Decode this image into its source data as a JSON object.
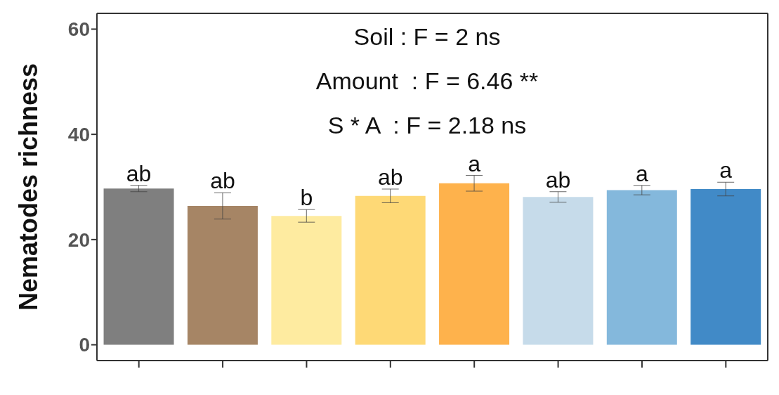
{
  "chart_data": {
    "type": "bar",
    "ylabel": "Nematodes richness",
    "categories": [
      null,
      null,
      null,
      null,
      null,
      null,
      null,
      null
    ],
    "values": [
      29.7,
      26.4,
      24.5,
      28.3,
      30.7,
      28.1,
      29.4,
      29.6
    ],
    "errors": [
      0.6,
      2.5,
      1.2,
      1.3,
      1.5,
      1.0,
      0.9,
      1.3
    ],
    "colors": [
      "#7f7f7f",
      "#a68565",
      "#feeba0",
      "#fed976",
      "#feb24c",
      "#c6dbea",
      "#84b8dc",
      "#418ac7"
    ],
    "value_labels": [
      "ab",
      "ab",
      "b",
      "ab",
      "a",
      "ab",
      "a",
      "a"
    ],
    "annotations": [
      "Soil : F = 2 ns",
      "Amount  : F = 6.46 **",
      "S * A  : F = 2.18 ns"
    ],
    "ylim": [
      -3,
      63
    ],
    "yticks": [
      0,
      20,
      40,
      60
    ],
    "grid": false,
    "legend": false
  }
}
